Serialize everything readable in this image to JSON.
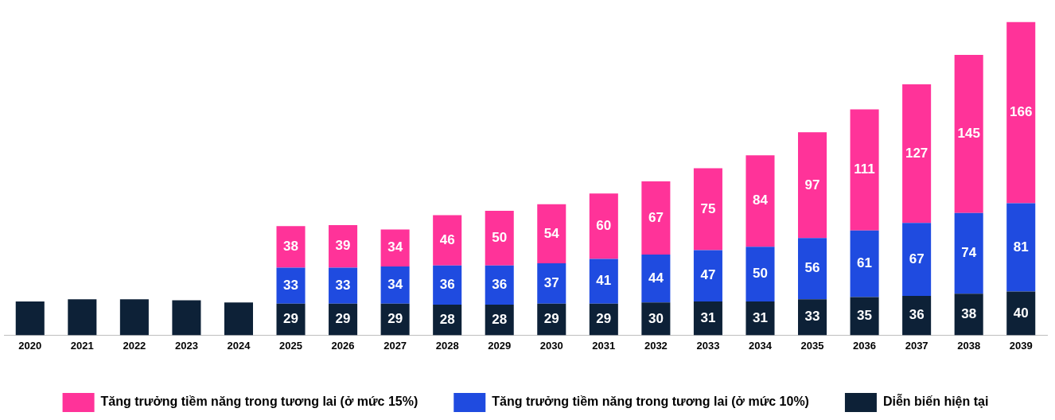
{
  "chart_data": {
    "type": "bar",
    "stacked": true,
    "categories": [
      "2020",
      "2021",
      "2022",
      "2023",
      "2024",
      "2025",
      "2026",
      "2027",
      "2028",
      "2029",
      "2030",
      "2031",
      "2032",
      "2033",
      "2034",
      "2035",
      "2036",
      "2037",
      "2038",
      "2039"
    ],
    "legend": "bottom",
    "tick_labels": "x",
    "series": [
      {
        "name": "Diễn biến hiện tại",
        "color": "#0d2137",
        "values": [
          31,
          33,
          33,
          32,
          30,
          29,
          29,
          29,
          28,
          28,
          29,
          29,
          30,
          31,
          31,
          33,
          35,
          36,
          38,
          40
        ],
        "value_labels": [
          null,
          null,
          null,
          null,
          null,
          "29",
          "29",
          "29",
          "28",
          "28",
          "29",
          "29",
          "30",
          "31",
          "31",
          "33",
          "35",
          "36",
          "38",
          "40"
        ]
      },
      {
        "name": "Tăng trưởng tiềm năng trong tương lai (ở mức 10%)",
        "color": "#1f4be0",
        "values": [
          null,
          null,
          null,
          null,
          null,
          33,
          33,
          34,
          36,
          36,
          37,
          41,
          44,
          47,
          50,
          56,
          61,
          67,
          74,
          81
        ],
        "value_labels": [
          null,
          null,
          null,
          null,
          null,
          "33",
          "33",
          "34",
          "36",
          "36",
          "37",
          "41",
          "44",
          "47",
          "50",
          "56",
          "61",
          "67",
          "74",
          "81"
        ]
      },
      {
        "name": "Tăng trưởng tiềm năng trong tương lai (ở mức 15%)",
        "color": "#ff3399",
        "values": [
          null,
          null,
          null,
          null,
          null,
          38,
          39,
          34,
          46,
          50,
          54,
          60,
          67,
          75,
          84,
          97,
          111,
          127,
          145,
          166
        ],
        "value_labels": [
          null,
          null,
          null,
          null,
          null,
          "38",
          "39",
          "34",
          "46",
          "50",
          "54",
          "60",
          "67",
          "75",
          "84",
          "97",
          "111",
          "127",
          "145",
          "166"
        ]
      }
    ]
  }
}
